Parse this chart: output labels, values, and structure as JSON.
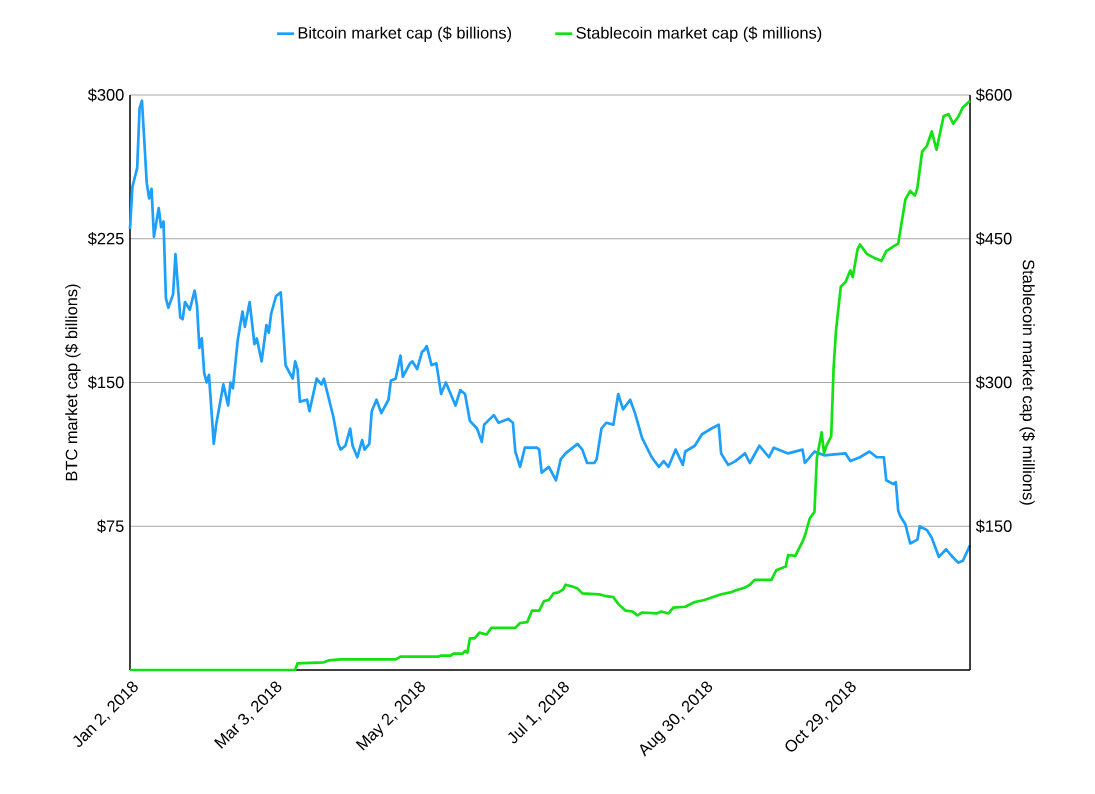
{
  "chart_data": {
    "type": "line",
    "ylabel": "BTC market cap ($ billions)",
    "y2label": "Stablecoin market cap ($ millions)",
    "xlim": [
      "2018-01-02",
      "2018-12-19"
    ],
    "xticks": [
      {
        "value": "2018-01-02",
        "label": "Jan 2, 2018"
      },
      {
        "value": "2018-03-03",
        "label": "Mar 3, 2018"
      },
      {
        "value": "2018-05-02",
        "label": "May 2, 2018"
      },
      {
        "value": "2018-07-01",
        "label": "Jul 1, 2018"
      },
      {
        "value": "2018-08-30",
        "label": "Aug 30, 2018"
      },
      {
        "value": "2018-10-29",
        "label": "Oct 29, 2018"
      }
    ],
    "ylim": [
      0,
      300
    ],
    "yticks": [
      {
        "value": 75,
        "label": "$75"
      },
      {
        "value": 150,
        "label": "$150"
      },
      {
        "value": 225,
        "label": "$225"
      },
      {
        "value": 300,
        "label": "$300"
      }
    ],
    "y2lim": [
      0,
      600
    ],
    "y2ticks": [
      {
        "value": 150,
        "label": "$150"
      },
      {
        "value": 300,
        "label": "$300"
      },
      {
        "value": 450,
        "label": "$450"
      },
      {
        "value": 600,
        "label": "$600"
      }
    ],
    "grid": "y",
    "legend": "top",
    "marker": "none",
    "line_style": "solid",
    "series": [
      {
        "name": "Bitcoin market cap ($ billions)",
        "color": "#1e9ffa",
        "axis": "y",
        "x": [
          "2018-01-02",
          "2018-01-03",
          "2018-01-05",
          "2018-01-06",
          "2018-01-07",
          "2018-01-09",
          "2018-01-10",
          "2018-01-11",
          "2018-01-12",
          "2018-01-14",
          "2018-01-15",
          "2018-01-16",
          "2018-01-17",
          "2018-01-18",
          "2018-01-20",
          "2018-01-21",
          "2018-01-23",
          "2018-01-24",
          "2018-01-25",
          "2018-01-27",
          "2018-01-29",
          "2018-01-30",
          "2018-01-31",
          "2018-02-01",
          "2018-02-02",
          "2018-02-03",
          "2018-02-04",
          "2018-02-06",
          "2018-02-07",
          "2018-02-10",
          "2018-02-12",
          "2018-02-13",
          "2018-02-14",
          "2018-02-16",
          "2018-02-18",
          "2018-02-19",
          "2018-02-21",
          "2018-02-23",
          "2018-02-24",
          "2018-02-26",
          "2018-02-28",
          "2018-03-01",
          "2018-03-02",
          "2018-03-04",
          "2018-03-06",
          "2018-03-08",
          "2018-03-11",
          "2018-03-12",
          "2018-03-13",
          "2018-03-14",
          "2018-03-17",
          "2018-03-18",
          "2018-03-21",
          "2018-03-23",
          "2018-03-24",
          "2018-03-26",
          "2018-03-28",
          "2018-03-30",
          "2018-03-31",
          "2018-04-02",
          "2018-04-04",
          "2018-04-05",
          "2018-04-07",
          "2018-04-09",
          "2018-04-10",
          "2018-04-12",
          "2018-04-13",
          "2018-04-15",
          "2018-04-17",
          "2018-04-20",
          "2018-04-21",
          "2018-04-23",
          "2018-04-25",
          "2018-04-26",
          "2018-04-29",
          "2018-04-30",
          "2018-05-02",
          "2018-05-04",
          "2018-05-05",
          "2018-05-06",
          "2018-05-08",
          "2018-05-10",
          "2018-05-12",
          "2018-05-14",
          "2018-05-18",
          "2018-05-20",
          "2018-05-22",
          "2018-05-24",
          "2018-05-27",
          "2018-05-29",
          "2018-05-30",
          "2018-06-03",
          "2018-06-05",
          "2018-06-09",
          "2018-06-11",
          "2018-06-12",
          "2018-06-14",
          "2018-06-16",
          "2018-06-18",
          "2018-06-21",
          "2018-06-22",
          "2018-06-23",
          "2018-06-26",
          "2018-06-29",
          "2018-07-01",
          "2018-07-03",
          "2018-07-08",
          "2018-07-10",
          "2018-07-12",
          "2018-07-15",
          "2018-07-16",
          "2018-07-18",
          "2018-07-20",
          "2018-07-23",
          "2018-07-25",
          "2018-07-27",
          "2018-07-30",
          "2018-08-01",
          "2018-08-04",
          "2018-08-08",
          "2018-08-11",
          "2018-08-13",
          "2018-08-15",
          "2018-08-18",
          "2018-08-21",
          "2018-08-22",
          "2018-08-26",
          "2018-08-29",
          "2018-09-02",
          "2018-09-05",
          "2018-09-06",
          "2018-09-09",
          "2018-09-12",
          "2018-09-16",
          "2018-09-18",
          "2018-09-22",
          "2018-09-26",
          "2018-09-28",
          "2018-10-04",
          "2018-10-10",
          "2018-10-11",
          "2018-10-15",
          "2018-10-19",
          "2018-10-28",
          "2018-10-30",
          "2018-11-03",
          "2018-11-07",
          "2018-11-10",
          "2018-11-13",
          "2018-11-14",
          "2018-11-17",
          "2018-11-18",
          "2018-11-19",
          "2018-11-20",
          "2018-11-22",
          "2018-11-24",
          "2018-11-27",
          "2018-11-28",
          "2018-12-01",
          "2018-12-03",
          "2018-12-06",
          "2018-12-09",
          "2018-12-11",
          "2018-12-14",
          "2018-12-16",
          "2018-12-19"
        ],
        "values": [
          230,
          252,
          262,
          293,
          297,
          254,
          246,
          251,
          226,
          241,
          231,
          234,
          194,
          189,
          196,
          217,
          184,
          183,
          192,
          188,
          198,
          190,
          168,
          173,
          155,
          150,
          154,
          118,
          128,
          149,
          138,
          150,
          147,
          172,
          187,
          179,
          192,
          170,
          173,
          161,
          180,
          176,
          186,
          195,
          197,
          159,
          152,
          161,
          157,
          140,
          141,
          135,
          152,
          149,
          152,
          142,
          132,
          118,
          115,
          117,
          126,
          117,
          111,
          120,
          115,
          118,
          135,
          141,
          134,
          141,
          151,
          152,
          164,
          153,
          160,
          161,
          157,
          166,
          167,
          169,
          159,
          160,
          144,
          150,
          138,
          146,
          144,
          130,
          126,
          119,
          128,
          133,
          129,
          131,
          129,
          114,
          106,
          116,
          116,
          116,
          115,
          103,
          106,
          99,
          110,
          113,
          118,
          115,
          108,
          108,
          110,
          126,
          129,
          128,
          144,
          136,
          141,
          134,
          121,
          111,
          106,
          109,
          106,
          115,
          107,
          114,
          117,
          123,
          126,
          128,
          113,
          107,
          109,
          113,
          108,
          117,
          111,
          116,
          113,
          115,
          108,
          114,
          112,
          113,
          109,
          111,
          114,
          111,
          111,
          99,
          97,
          98,
          83,
          80,
          76,
          66,
          68,
          75,
          73,
          69,
          59,
          63,
          60,
          56,
          57,
          65
        ]
      },
      {
        "name": "Stablecoin market cap ($ millions)",
        "color": "#14e114",
        "axis": "y2",
        "x": [
          "2018-01-02",
          "2018-03-12",
          "2018-03-13",
          "2018-03-24",
          "2018-03-26",
          "2018-03-31",
          "2018-04-23",
          "2018-04-25",
          "2018-05-05",
          "2018-05-11",
          "2018-05-12",
          "2018-05-16",
          "2018-05-17",
          "2018-05-21",
          "2018-05-22",
          "2018-05-23",
          "2018-05-24",
          "2018-05-26",
          "2018-05-28",
          "2018-05-31",
          "2018-06-02",
          "2018-06-12",
          "2018-06-14",
          "2018-06-17",
          "2018-06-19",
          "2018-06-22",
          "2018-06-24",
          "2018-06-26",
          "2018-06-28",
          "2018-06-30",
          "2018-07-02",
          "2018-07-03",
          "2018-07-06",
          "2018-07-08",
          "2018-07-10",
          "2018-07-17",
          "2018-07-20",
          "2018-07-23",
          "2018-07-25",
          "2018-07-28",
          "2018-07-31",
          "2018-08-02",
          "2018-08-04",
          "2018-08-10",
          "2018-08-12",
          "2018-08-15",
          "2018-08-17",
          "2018-08-22",
          "2018-08-26",
          "2018-08-30",
          "2018-09-06",
          "2018-09-10",
          "2018-09-12",
          "2018-09-16",
          "2018-09-18",
          "2018-09-20",
          "2018-09-27",
          "2018-09-29",
          "2018-10-03",
          "2018-10-04",
          "2018-10-07",
          "2018-10-10",
          "2018-10-11",
          "2018-10-13",
          "2018-10-15",
          "2018-10-16",
          "2018-10-18",
          "2018-10-19",
          "2018-10-20",
          "2018-10-22",
          "2018-10-23",
          "2018-10-24",
          "2018-10-26",
          "2018-10-28",
          "2018-10-30",
          "2018-10-31",
          "2018-11-02",
          "2018-11-03",
          "2018-11-06",
          "2018-11-09",
          "2018-11-12",
          "2018-11-14",
          "2018-11-17",
          "2018-11-19",
          "2018-11-22",
          "2018-11-24",
          "2018-11-26",
          "2018-11-27",
          "2018-11-29",
          "2018-12-01",
          "2018-12-03",
          "2018-12-05",
          "2018-12-08",
          "2018-12-10",
          "2018-12-12",
          "2018-12-14",
          "2018-12-16",
          "2018-12-19"
        ],
        "values": [
          0,
          0,
          7,
          8,
          10,
          11,
          11,
          14,
          14,
          14,
          15,
          15,
          17,
          17,
          20,
          18,
          33,
          33,
          39,
          37,
          44,
          44,
          49,
          50,
          62,
          62,
          72,
          73,
          80,
          81,
          84,
          89,
          87,
          85,
          80,
          79,
          77,
          76,
          69,
          62,
          61,
          57,
          60,
          59,
          61,
          59,
          65,
          66,
          71,
          73,
          79,
          81,
          83,
          86,
          89,
          94,
          94,
          104,
          108,
          120,
          119,
          134,
          140,
          158,
          165,
          221,
          248,
          226,
          234,
          244,
          315,
          354,
          400,
          405,
          417,
          410,
          439,
          444,
          434,
          430,
          427,
          437,
          442,
          445,
          491,
          500,
          495,
          503,
          541,
          547,
          562,
          543,
          578,
          580,
          570,
          577,
          587,
          594
        ]
      }
    ]
  }
}
